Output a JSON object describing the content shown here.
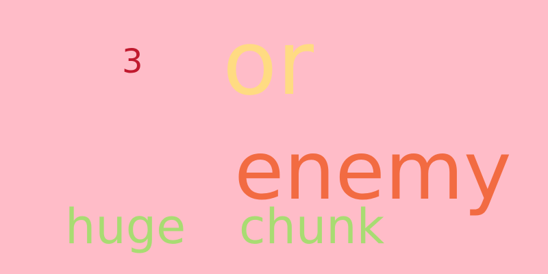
{
  "background_color": "#FFBCC8",
  "words": [
    {
      "text": "3",
      "color": "#C0192E"
    },
    {
      "text": "or",
      "color": "#FFDB82"
    },
    {
      "text": "enemy",
      "color": "#F26B42"
    },
    {
      "text": "huge",
      "color": "#A8DC72"
    },
    {
      "text": "chunk",
      "color": "#A8DC72"
    }
  ]
}
